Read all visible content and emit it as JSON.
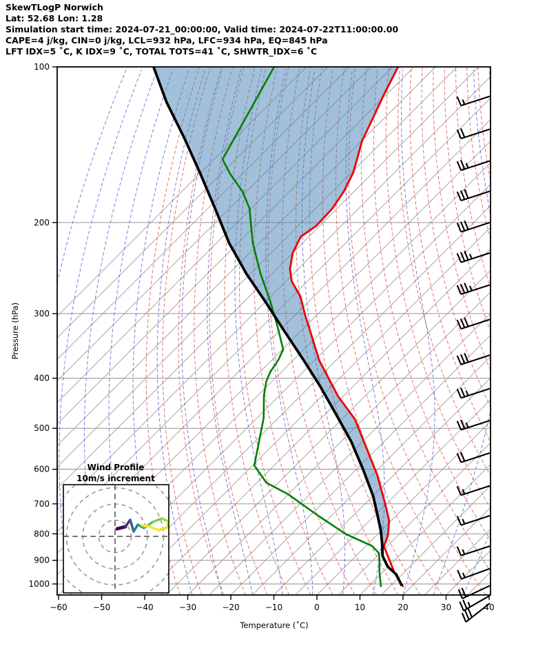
{
  "header": {
    "line1": "SkewTLogP Norwich",
    "line2": "Lat: 52.68   Lon: 1.28",
    "line3": "Simulation start time: 2024-07-21_00:00:00, Valid time: 2024-07-22T11:00:00.00",
    "line4": "CAPE=4 j/kg, CIN=0 j/kg, LCL=932 hPa, LFC=934 hPa, EQ=845 hPa",
    "line5": "LFT IDX=5 ˚C, K IDX=9 ˚C, TOTAL TOTS=41 ˚C, SHWTR_IDX=6 ˚C"
  },
  "axes": {
    "xlabel": "Temperature (˚C)",
    "ylabel": "Pressure (hPa)",
    "x_ticks": [
      -60,
      -50,
      -40,
      -30,
      -20,
      -10,
      0,
      10,
      20,
      30,
      40
    ],
    "y_ticks": [
      100,
      200,
      300,
      400,
      500,
      600,
      700,
      800,
      900,
      1000
    ],
    "x_range": [
      -60,
      40
    ],
    "p_range": [
      100,
      1050
    ]
  },
  "inset": {
    "title_line1": "Wind Profile",
    "title_line2": "10m/s increment",
    "ring_values": [
      10,
      20,
      30,
      40
    ],
    "trace_points": [
      [
        170,
        767
      ],
      [
        182,
        764
      ],
      [
        189,
        754
      ],
      [
        194,
        771
      ],
      [
        200,
        761
      ],
      [
        209,
        766
      ],
      [
        222,
        757
      ],
      [
        235,
        752
      ],
      [
        244,
        756
      ],
      [
        243,
        765
      ],
      [
        230,
        769
      ],
      [
        218,
        764
      ],
      [
        206,
        762
      ]
    ],
    "trace_colors": [
      "#440154",
      "#46327e",
      "#365c8d",
      "#277f8e",
      "#1fa187",
      "#4ac16d",
      "#7ad151",
      "#a0da39",
      "#d0e11c",
      "#e7e419",
      "#fde725",
      "#fde725"
    ]
  },
  "chart_data": {
    "type": "line",
    "subtype": "skewt-logp-sounding",
    "title": "SkewTLogP Norwich",
    "xlabel": "Temperature (˚C)",
    "ylabel": "Pressure (hPa)",
    "x_range": [
      -60,
      40
    ],
    "pressure_range": [
      100,
      1050
    ],
    "skew": "isotherms at 45 degrees, pressure on log scale",
    "grid": {
      "isotherm_step_c": 5,
      "isotherm_color": "#9a9a9a",
      "dry_adiabat_theta_k": {
        "min": 238,
        "max": 438,
        "step": 5
      },
      "dry_adiabat_color": "#e87070",
      "moist_adiabat_start_c": {
        "min": -64,
        "max": 40,
        "step": 7
      },
      "moist_adiabat_color": "#5c5cdb",
      "pressure_line_color": "#888888"
    },
    "series": [
      {
        "name": "temperature",
        "color": "#ee0000",
        "points": [
          [
            100,
            -103.7
          ],
          [
            113,
            -100.6
          ],
          [
            125,
            -97.8
          ],
          [
            139,
            -94.9
          ],
          [
            160,
            -89.6
          ],
          [
            174,
            -87.4
          ],
          [
            188,
            -86.1
          ],
          [
            203,
            -85.8
          ],
          [
            213,
            -86.9
          ],
          [
            229,
            -85.0
          ],
          [
            246,
            -81.9
          ],
          [
            260,
            -78.6
          ],
          [
            278,
            -73.1
          ],
          [
            302,
            -67.7
          ],
          [
            334,
            -60.8
          ],
          [
            369,
            -54.0
          ],
          [
            399,
            -47.8
          ],
          [
            433,
            -41.3
          ],
          [
            480,
            -32.0
          ],
          [
            545,
            -22.7
          ],
          [
            615,
            -13.9
          ],
          [
            700,
            -5.3
          ],
          [
            754,
            -0.5
          ],
          [
            806,
            2.7
          ],
          [
            846,
            4.3
          ],
          [
            890,
            8.0
          ],
          [
            953,
            13.0
          ],
          [
            1013,
            18.2
          ]
        ]
      },
      {
        "name": "dewpoint",
        "color": "#007f00",
        "points": [
          [
            100,
            -132.5
          ],
          [
            123,
            -127.7
          ],
          [
            151,
            -123.0
          ],
          [
            161,
            -117.9
          ],
          [
            174,
            -111.0
          ],
          [
            188,
            -105.3
          ],
          [
            200,
            -101.8
          ],
          [
            219,
            -96.6
          ],
          [
            251,
            -87.7
          ],
          [
            284,
            -79.0
          ],
          [
            318,
            -71.4
          ],
          [
            352,
            -64.8
          ],
          [
            369,
            -63.5
          ],
          [
            389,
            -62.6
          ],
          [
            406,
            -61.3
          ],
          [
            432,
            -58.6
          ],
          [
            478,
            -53.4
          ],
          [
            590,
            -44.6
          ],
          [
            637,
            -37.8
          ],
          [
            670,
            -30.2
          ],
          [
            738,
            -18.1
          ],
          [
            801,
            -7.4
          ],
          [
            844,
            1.4
          ],
          [
            870,
            4.5
          ],
          [
            895,
            6.2
          ],
          [
            945,
            9.0
          ],
          [
            1013,
            13.0
          ]
        ]
      },
      {
        "name": "parcel",
        "color": "#000000",
        "points": [
          [
            100,
            -160.5
          ],
          [
            117,
            -149.3
          ],
          [
            137,
            -137.0
          ],
          [
            161,
            -124.8
          ],
          [
            188,
            -113.3
          ],
          [
            219,
            -102.1
          ],
          [
            251,
            -91.0
          ],
          [
            284,
            -80.2
          ],
          [
            324,
            -68.9
          ],
          [
            369,
            -57.6
          ],
          [
            414,
            -47.8
          ],
          [
            468,
            -37.8
          ],
          [
            530,
            -27.7
          ],
          [
            599,
            -18.6
          ],
          [
            677,
            -9.8
          ],
          [
            745,
            -3.7
          ],
          [
            790,
            0.0
          ],
          [
            838,
            3.4
          ],
          [
            883,
            6.2
          ],
          [
            926,
            9.9
          ],
          [
            958,
            13.6
          ],
          [
            1008,
            17.6
          ]
        ]
      }
    ],
    "shading": {
      "between": [
        "parcel",
        "temperature"
      ],
      "top_p": 100,
      "bottom_p": 845,
      "color": "rgba(70,130,180,0.5)"
    },
    "indices": {
      "CAPE_j_kg": 4,
      "CIN_j_kg": 0,
      "LCL_hPa": 932,
      "LFC_hPa": 934,
      "EQ_hPa": 845,
      "LFT_IDX_C": 5,
      "K_IDX_C": 9,
      "TOTAL_TOTS_C": 41,
      "SHWTR_IDX_C": 6
    },
    "wind_barbs": [
      {
        "p": 114,
        "speed": 15,
        "tilt": 18
      },
      {
        "p": 132,
        "speed": 20,
        "tilt": 18
      },
      {
        "p": 152,
        "speed": 25,
        "tilt": 18
      },
      {
        "p": 174,
        "speed": 30,
        "tilt": 18
      },
      {
        "p": 200,
        "speed": 30,
        "tilt": 18
      },
      {
        "p": 229,
        "speed": 35,
        "tilt": 18
      },
      {
        "p": 264,
        "speed": 35,
        "tilt": 18
      },
      {
        "p": 308,
        "speed": 30,
        "tilt": 18
      },
      {
        "p": 361,
        "speed": 30,
        "tilt": 18
      },
      {
        "p": 419,
        "speed": 25,
        "tilt": 18
      },
      {
        "p": 483,
        "speed": 25,
        "tilt": 18
      },
      {
        "p": 558,
        "speed": 20,
        "tilt": 18
      },
      {
        "p": 646,
        "speed": 15,
        "tilt": 18
      },
      {
        "p": 738,
        "speed": 15,
        "tilt": 18
      },
      {
        "p": 845,
        "speed": 15,
        "tilt": 18
      },
      {
        "p": 934,
        "speed": 15,
        "tilt": 20
      },
      {
        "p": 1008,
        "speed": 20,
        "tilt": 25
      },
      {
        "p": 1053,
        "speed": 25,
        "tilt": 30
      },
      {
        "p": 1090,
        "speed": 30,
        "tilt": 38
      }
    ],
    "hodograph": {
      "title": "Wind Profile",
      "subtitle": "10m/s increment",
      "ring_increment_ms": 10,
      "rings": [
        10,
        20,
        30,
        40
      ]
    }
  }
}
